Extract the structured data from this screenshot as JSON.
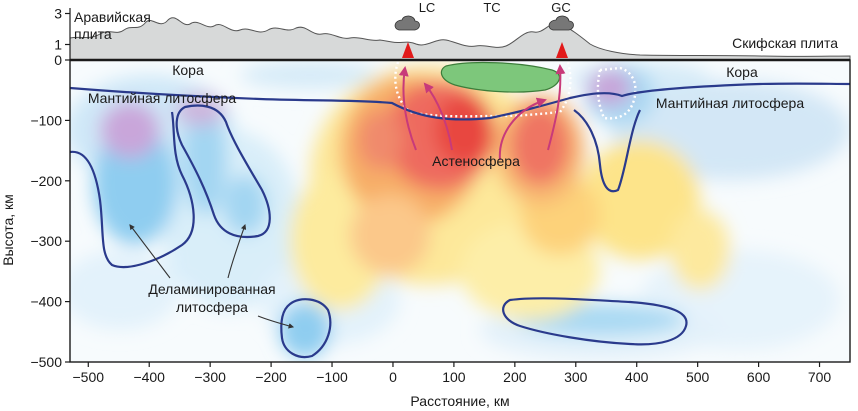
{
  "axes": {
    "x_label": "Расстояние, км",
    "y_label": "Высота, км",
    "x_ticks": [
      -500,
      -400,
      -300,
      -200,
      -100,
      0,
      100,
      200,
      300,
      400,
      500,
      600,
      700
    ],
    "y_ticks": [
      0,
      -100,
      -200,
      -300,
      -400,
      -500
    ],
    "topo_ticks": [
      3,
      1
    ],
    "x_range": [
      -530,
      750
    ],
    "y_range": [
      -500,
      0
    ]
  },
  "plates": {
    "arabian": [
      "Аравийская",
      "плита"
    ],
    "scythian": "Скифская плита"
  },
  "volcanoes": [
    {
      "name": "LC",
      "x_km": 20,
      "marker": true
    },
    {
      "name": "TC",
      "x_km": 160,
      "marker": false
    },
    {
      "name": "GC",
      "x_km": 280,
      "marker": true
    }
  ],
  "labels": {
    "crust_left": "Кора",
    "crust_right": "Кора",
    "mantle_left": "Мантийная литосфера",
    "mantle_right": "Мантийная литосфера",
    "asthenosphere": "Астеносфера",
    "delaminated": [
      "Деламинированная",
      "литосфера"
    ]
  },
  "colors": {
    "hot_red": "#e8473f",
    "warm_orange": "#f4a05a",
    "warm_yellow": "#fde27a",
    "cold_blue": "#7fc3ec",
    "light_blue": "#cfe8f8",
    "purple": "#c9a6da",
    "outline": "#2a3a8c",
    "green_body": "#7dc77b",
    "magma_arrow": "#c83a7a",
    "topography": "#d7d9d9"
  }
}
